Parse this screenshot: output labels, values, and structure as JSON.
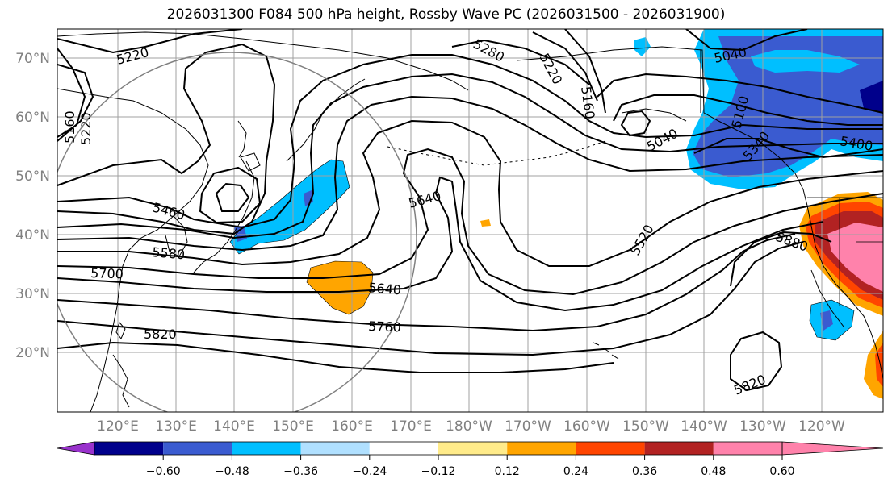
{
  "title": "2026031300 F084 500 hPa height, Rossby Wave PC (2026031500 - 2026031900)",
  "lat_labels": [
    "70°N",
    "60°N",
    "50°N",
    "40°N",
    "30°N",
    "20°N"
  ],
  "lon_labels": [
    "120°E",
    "130°E",
    "140°E",
    "150°E",
    "160°E",
    "170°E",
    "180°W",
    "170°W",
    "160°W",
    "150°W",
    "140°W",
    "130°W",
    "120°W"
  ],
  "contour_labels": [
    "5220",
    "5220",
    "5160",
    "5280",
    "5220",
    "5160",
    "5040",
    "5100",
    "5340",
    "5040",
    "5400",
    "5460",
    "5580",
    "5700",
    "5820",
    "5640",
    "5640",
    "5760",
    "5520",
    "5880",
    "5820"
  ],
  "colorbar": {
    "ticks": [
      "−0.60",
      "−0.48",
      "−0.36",
      "−0.24",
      "−0.12",
      "0.12",
      "0.24",
      "0.36",
      "0.48",
      "0.60"
    ],
    "colors": [
      "#9932cc",
      "#00008b",
      "#3a5bd0",
      "#00bfff",
      "#b0e0ff",
      "#ffffff",
      "#ffeb8a",
      "#ffa500",
      "#ff4500",
      "#b22222",
      "#ff82ab"
    ]
  },
  "colors": {
    "contour": "#000000",
    "grid": "#a0a0a0",
    "coast": "#000000"
  }
}
